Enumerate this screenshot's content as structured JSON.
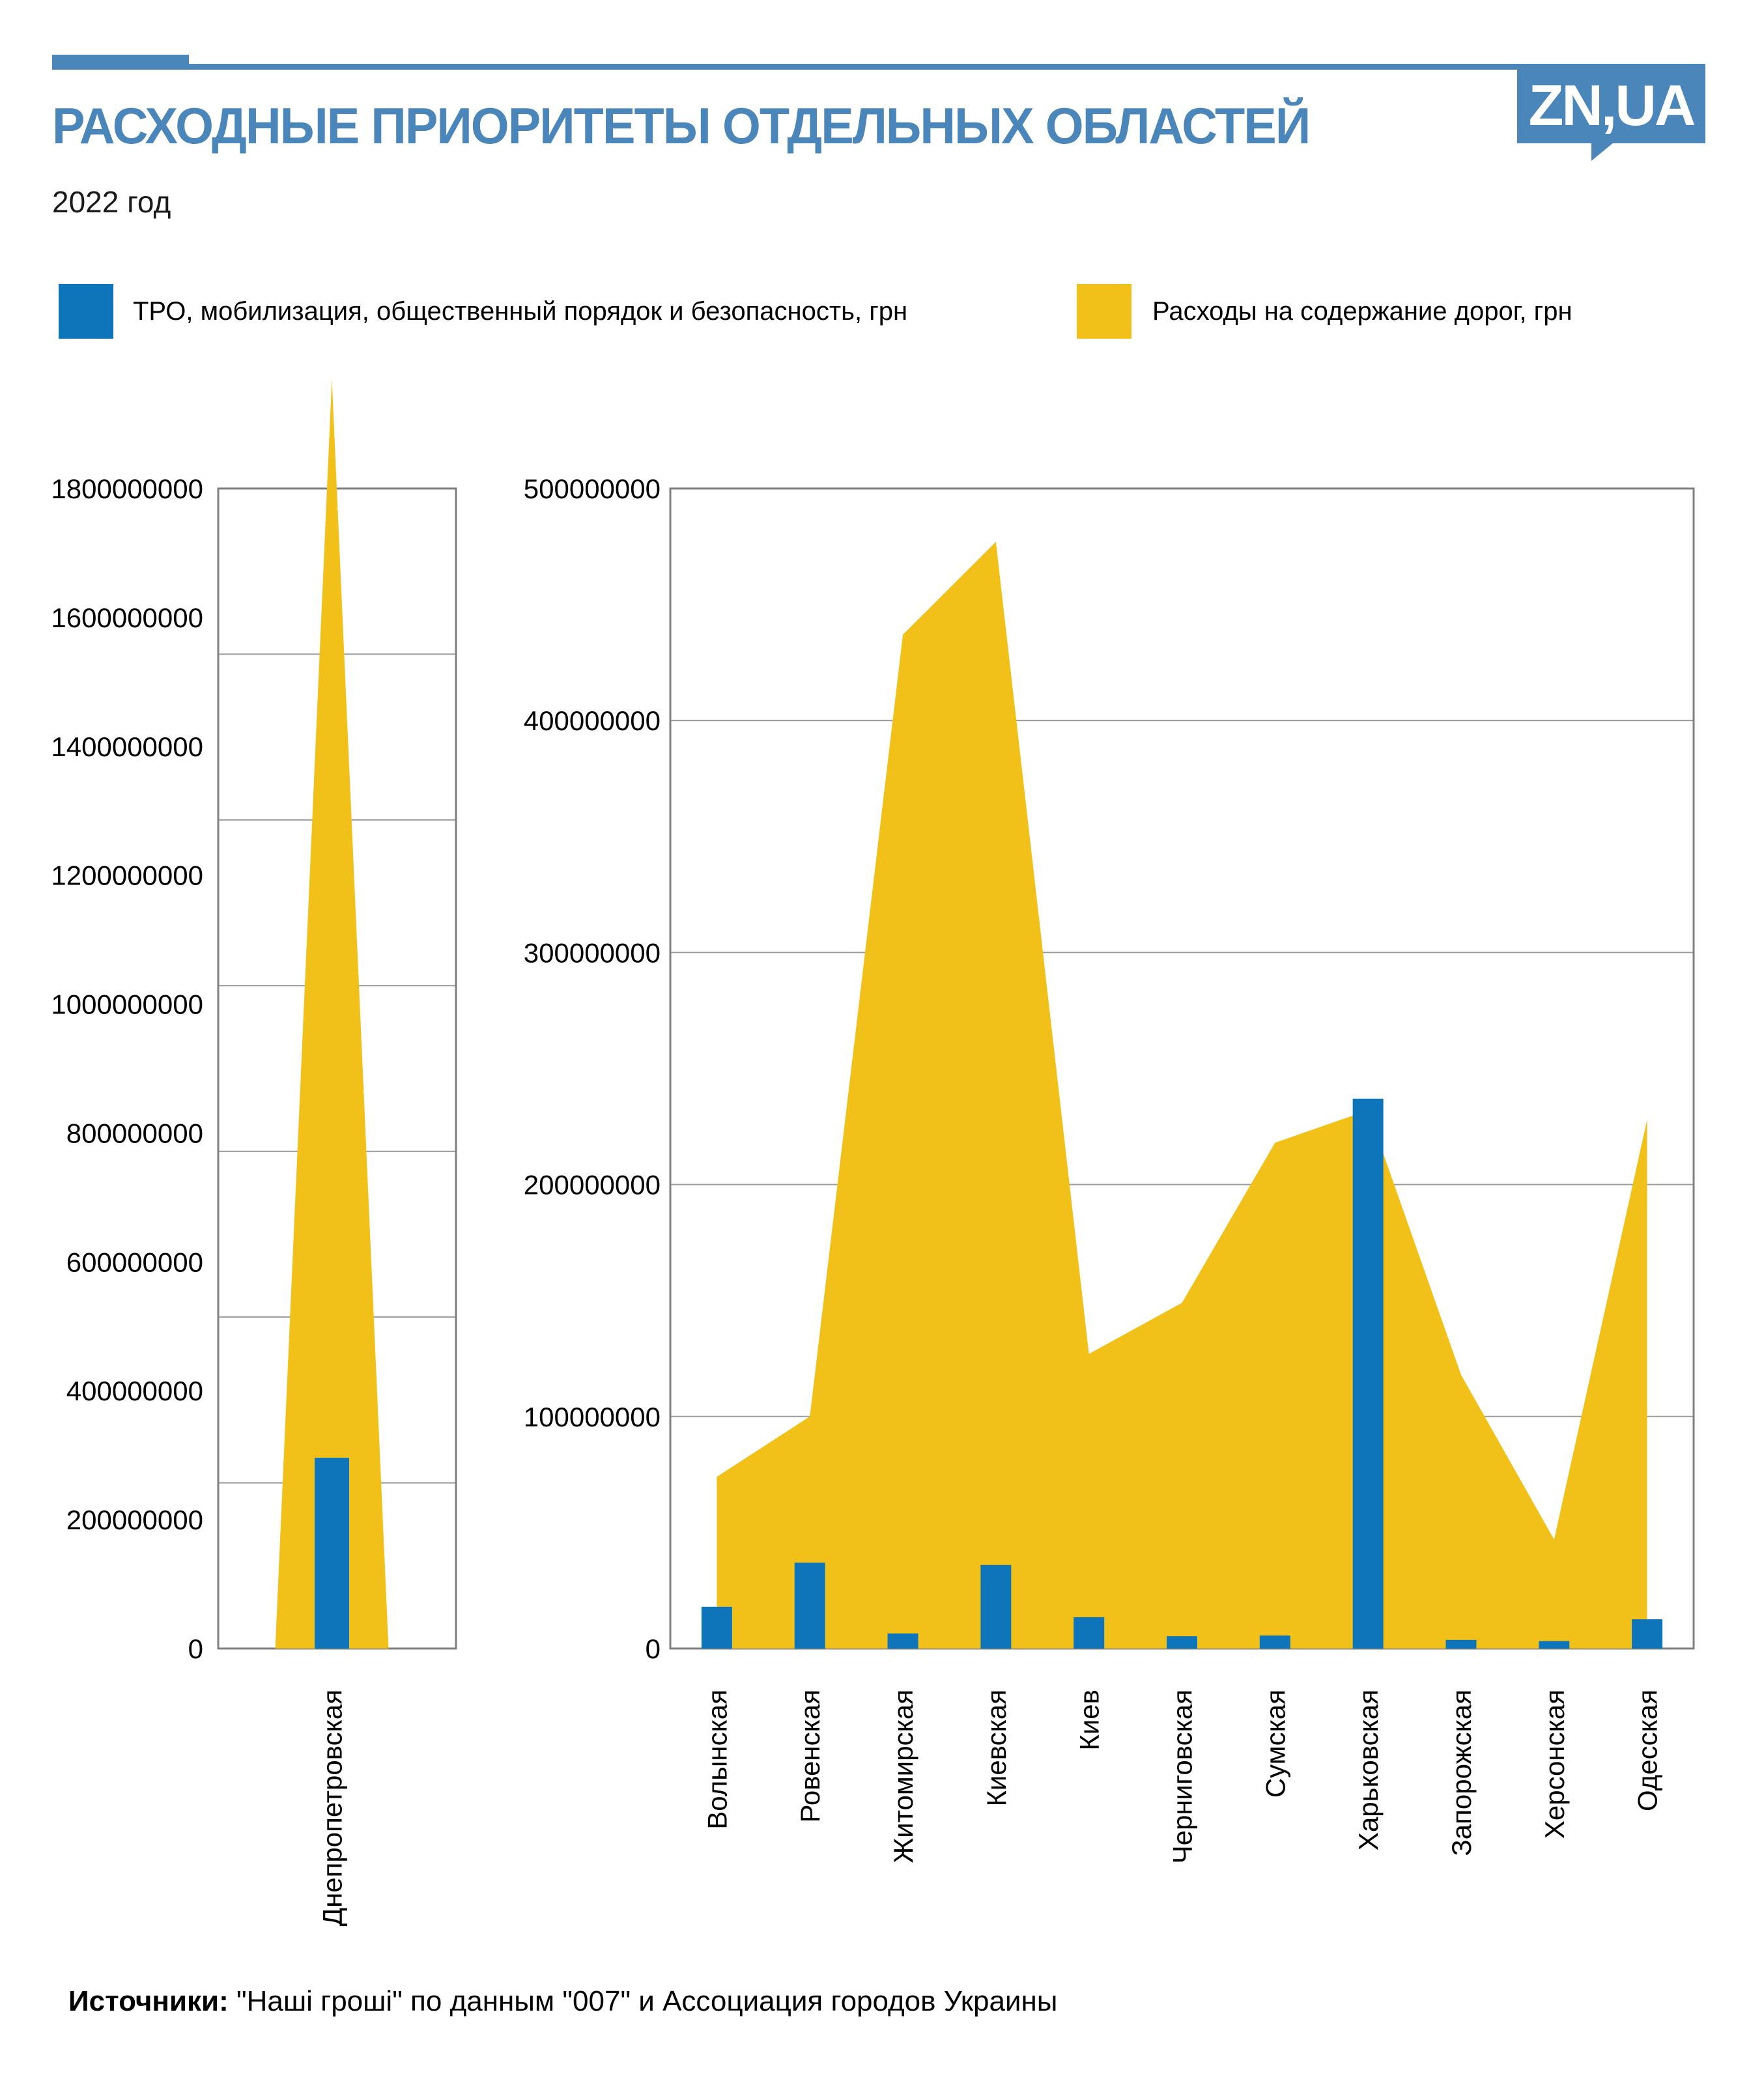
{
  "header": {
    "title": "РАСХОДНЫЕ ПРИОРИТЕТЫ ОТДЕЛЬНЫХ ОБЛАСТЕЙ",
    "subtitle": "2022 год",
    "logo_text": "ZN,UA",
    "accent_blue": "#4a86ba"
  },
  "legend": {
    "position": "top",
    "items": [
      {
        "label": "ТРО, мобилизация, общественный порядок и безопасность, грн",
        "color": "#0e75ba"
      },
      {
        "label": "Расходы на содержание дорог, грн",
        "color": "#f2c119"
      }
    ]
  },
  "source": {
    "label": "Источники:",
    "text": " \"Наші гроші\" по данным \"007\" и Ассоциация городов Украины"
  },
  "chart_data": [
    {
      "type": "area",
      "subtype": "area-with-bar-overlay",
      "categories": [
        "Днепропетровская"
      ],
      "series": [
        {
          "name": "Расходы на содержание дорог, грн",
          "type": "area",
          "color": "#f2c119",
          "values": [
            1970000000
          ]
        },
        {
          "name": "ТРО, мобилизация, общественный порядок и безопасность, грн",
          "type": "bar",
          "color": "#0e75ba",
          "values": [
            296000000
          ]
        }
      ],
      "ylim": [
        0,
        1800000000
      ],
      "ytick_step": 200000000,
      "grid": true,
      "grid_divisions": 7,
      "note": "yellow area peak (1.97 bln) overflows above the plot top border"
    },
    {
      "type": "area",
      "subtype": "area-with-bar-overlay",
      "categories": [
        "Волынская",
        "Ровенская",
        "Житомирская",
        "Киевская",
        "Киев",
        "Черниговская",
        "Сумская",
        "Харьковская",
        "Запорожская",
        "Херсонская",
        "Одесская"
      ],
      "series": [
        {
          "name": "Расходы на содержание дорог, грн",
          "type": "area",
          "color": "#f2c119",
          "values": [
            74000000,
            100000000,
            437000000,
            477000000,
            127000000,
            149000000,
            218000000,
            232000000,
            118000000,
            47000000,
            228000000
          ]
        },
        {
          "name": "ТРО, мобилизация, общественный порядок и безопасность, грн",
          "type": "bar",
          "color": "#0e75ba",
          "values": [
            18000000,
            37000000,
            6500000,
            36000000,
            13500000,
            5300000,
            5600000,
            237000000,
            3700000,
            3200000,
            12600000
          ]
        }
      ],
      "ylim": [
        0,
        500000000
      ],
      "ytick_step": 100000000,
      "grid": true
    }
  ]
}
